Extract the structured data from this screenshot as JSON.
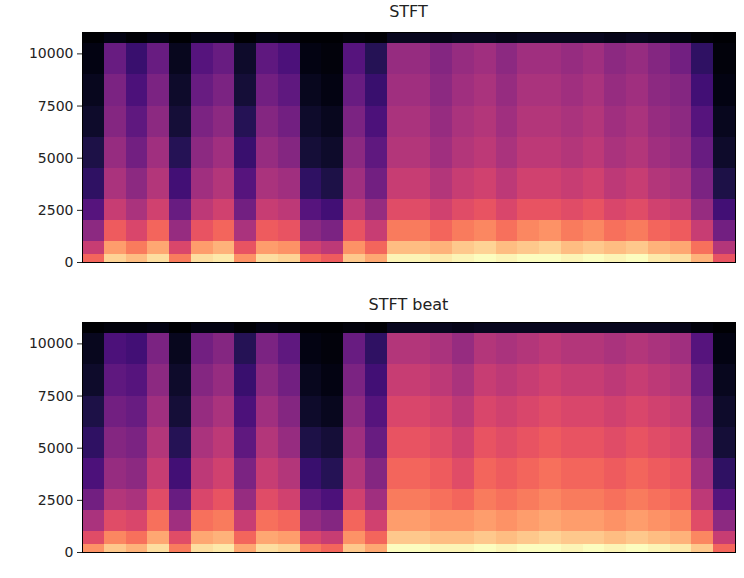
{
  "chart_data": [
    {
      "type": "heatmap",
      "title": "STFT",
      "color": "magma",
      "tick_labels": "y",
      "xlim": [
        0,
        30
      ],
      "ylim": [
        0,
        11025
      ],
      "yticks": [
        0,
        2500,
        5000,
        7500,
        10000
      ],
      "y_bins": [
        0,
        400,
        1000,
        2000,
        3000,
        4500,
        6000,
        7500,
        9000,
        10500,
        11025
      ],
      "cells": [
        [
          62,
          82,
          78,
          84,
          66,
          84,
          86,
          70,
          84,
          82,
          64,
          60,
          80,
          74,
          88,
          88,
          86,
          88,
          90,
          88,
          90,
          90,
          88,
          90,
          88,
          90,
          86,
          84,
          76,
          58
        ],
        [
          50,
          72,
          66,
          74,
          54,
          72,
          76,
          58,
          72,
          70,
          52,
          48,
          70,
          62,
          78,
          78,
          76,
          80,
          82,
          78,
          80,
          82,
          78,
          80,
          78,
          80,
          76,
          74,
          64,
          46
        ],
        [
          38,
          60,
          54,
          62,
          40,
          58,
          62,
          44,
          60,
          58,
          38,
          34,
          58,
          50,
          66,
          66,
          62,
          66,
          68,
          64,
          68,
          70,
          66,
          68,
          64,
          66,
          62,
          60,
          50,
          32
        ],
        [
          26,
          50,
          44,
          52,
          30,
          48,
          52,
          32,
          50,
          48,
          26,
          22,
          48,
          40,
          56,
          56,
          52,
          56,
          58,
          54,
          58,
          58,
          56,
          58,
          54,
          56,
          52,
          50,
          40,
          22
        ],
        [
          18,
          44,
          38,
          46,
          22,
          42,
          46,
          26,
          44,
          42,
          18,
          14,
          42,
          32,
          50,
          50,
          46,
          50,
          52,
          48,
          52,
          52,
          50,
          52,
          48,
          50,
          46,
          44,
          34,
          14
        ],
        [
          14,
          40,
          32,
          42,
          16,
          38,
          42,
          20,
          40,
          36,
          12,
          10,
          38,
          28,
          46,
          46,
          42,
          46,
          48,
          44,
          48,
          48,
          46,
          48,
          44,
          46,
          42,
          40,
          30,
          10
        ],
        [
          10,
          36,
          28,
          38,
          12,
          34,
          38,
          16,
          36,
          32,
          10,
          8,
          34,
          24,
          44,
          44,
          40,
          44,
          46,
          42,
          46,
          46,
          44,
          46,
          42,
          44,
          40,
          38,
          26,
          8
        ],
        [
          8,
          34,
          24,
          34,
          10,
          30,
          34,
          12,
          32,
          28,
          8,
          6,
          30,
          20,
          42,
          42,
          38,
          42,
          44,
          40,
          44,
          44,
          42,
          44,
          40,
          42,
          38,
          36,
          22,
          6
        ],
        [
          6,
          30,
          20,
          30,
          8,
          26,
          30,
          10,
          28,
          24,
          6,
          5,
          26,
          16,
          40,
          40,
          36,
          40,
          42,
          38,
          42,
          42,
          40,
          42,
          38,
          40,
          36,
          32,
          18,
          5
        ],
        [
          3,
          6,
          4,
          6,
          3,
          6,
          6,
          3,
          6,
          5,
          3,
          3,
          5,
          4,
          8,
          8,
          7,
          8,
          8,
          7,
          8,
          8,
          8,
          8,
          7,
          8,
          7,
          6,
          4,
          3
        ]
      ]
    },
    {
      "type": "heatmap",
      "title": "STFT beat",
      "color": "magma",
      "tick_labels": "y",
      "xlim": [
        0,
        30
      ],
      "ylim": [
        0,
        11025
      ],
      "yticks": [
        0,
        2500,
        5000,
        7500,
        10000
      ],
      "y_bins": [
        0,
        400,
        1000,
        2000,
        3000,
        4500,
        6000,
        7500,
        9000,
        10500,
        11025
      ],
      "cells": [
        [
          70,
          80,
          76,
          84,
          66,
          84,
          86,
          74,
          84,
          82,
          66,
          62,
          80,
          74,
          90,
          90,
          88,
          88,
          90,
          88,
          90,
          90,
          88,
          90,
          88,
          90,
          88,
          86,
          80,
          62
        ],
        [
          56,
          68,
          64,
          74,
          56,
          74,
          76,
          62,
          74,
          72,
          54,
          50,
          70,
          62,
          80,
          80,
          78,
          78,
          80,
          78,
          80,
          82,
          80,
          80,
          78,
          80,
          78,
          76,
          68,
          50
        ],
        [
          44,
          56,
          54,
          64,
          42,
          64,
          66,
          50,
          64,
          62,
          40,
          36,
          62,
          52,
          72,
          72,
          70,
          70,
          72,
          70,
          72,
          74,
          72,
          72,
          70,
          72,
          70,
          68,
          56,
          38
        ],
        [
          32,
          46,
          44,
          56,
          30,
          54,
          58,
          40,
          56,
          52,
          28,
          24,
          52,
          42,
          66,
          66,
          64,
          62,
          66,
          64,
          66,
          68,
          66,
          66,
          64,
          66,
          64,
          62,
          48,
          26
        ],
        [
          24,
          40,
          38,
          50,
          22,
          48,
          52,
          34,
          50,
          46,
          20,
          16,
          46,
          36,
          62,
          62,
          60,
          56,
          62,
          60,
          62,
          64,
          62,
          62,
          60,
          62,
          60,
          58,
          42,
          18
        ],
        [
          18,
          36,
          34,
          46,
          16,
          44,
          48,
          28,
          46,
          40,
          14,
          12,
          42,
          30,
          58,
          58,
          56,
          52,
          58,
          56,
          58,
          60,
          58,
          58,
          56,
          58,
          56,
          54,
          38,
          12
        ],
        [
          14,
          32,
          30,
          42,
          12,
          40,
          44,
          24,
          42,
          36,
          10,
          8,
          38,
          26,
          54,
          54,
          52,
          48,
          54,
          52,
          54,
          56,
          54,
          54,
          52,
          54,
          52,
          50,
          34,
          10
        ],
        [
          10,
          28,
          26,
          38,
          10,
          36,
          40,
          20,
          38,
          32,
          8,
          6,
          34,
          22,
          50,
          50,
          48,
          44,
          50,
          48,
          50,
          52,
          50,
          50,
          48,
          50,
          48,
          46,
          30,
          8
        ],
        [
          8,
          24,
          22,
          34,
          8,
          32,
          36,
          16,
          34,
          28,
          6,
          5,
          30,
          18,
          46,
          46,
          44,
          40,
          46,
          44,
          46,
          48,
          46,
          46,
          44,
          46,
          44,
          42,
          26,
          6
        ],
        [
          3,
          5,
          5,
          6,
          3,
          6,
          6,
          4,
          6,
          5,
          3,
          3,
          5,
          4,
          8,
          8,
          8,
          7,
          8,
          8,
          8,
          8,
          8,
          8,
          8,
          8,
          8,
          7,
          5,
          3
        ]
      ]
    }
  ]
}
